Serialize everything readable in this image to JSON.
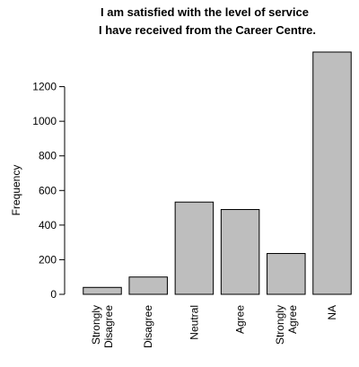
{
  "chart_data": {
    "type": "bar",
    "title_lines": [
      "I am satisfied with the level of service",
      "I have received from the Career Centre."
    ],
    "xlabel": "",
    "ylabel": "Frequency",
    "categories": [
      [
        "Strongly",
        "Disagree"
      ],
      [
        "Disagree"
      ],
      [
        "Neutral"
      ],
      [
        "Agree"
      ],
      [
        "Strongly",
        "Agree"
      ],
      [
        "NA"
      ]
    ],
    "values": [
      40,
      100,
      533,
      490,
      236,
      1400
    ],
    "ylim": [
      0,
      1400
    ],
    "yticks": [
      0,
      200,
      400,
      600,
      800,
      1000,
      1200
    ],
    "bar_color": "#bebebe",
    "grid": false
  }
}
